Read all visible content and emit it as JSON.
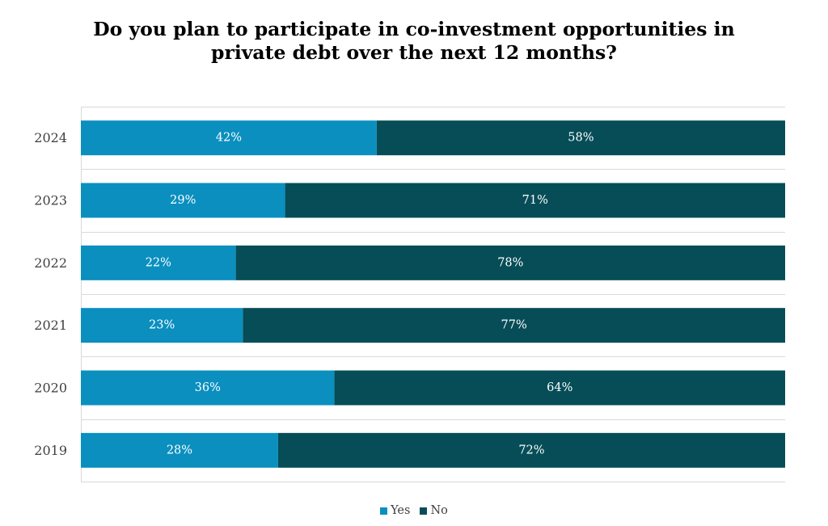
{
  "chart_data": {
    "type": "bar",
    "orientation": "horizontal",
    "stacked": true,
    "title_lines": [
      "Do you plan to participate in co-investment opportunities in",
      "private debt over the next 12 months?"
    ],
    "categories": [
      "2024",
      "2023",
      "2022",
      "2021",
      "2020",
      "2019"
    ],
    "series": [
      {
        "name": "Yes",
        "color": "#0a8fbf",
        "values": [
          42,
          29,
          22,
          23,
          36,
          28
        ]
      },
      {
        "name": "No",
        "color": "#064d57",
        "values": [
          58,
          71,
          78,
          77,
          64,
          72
        ]
      }
    ],
    "value_suffix": "%",
    "xlim": [
      0,
      100
    ],
    "grid": true,
    "legend_position": "bottom"
  }
}
